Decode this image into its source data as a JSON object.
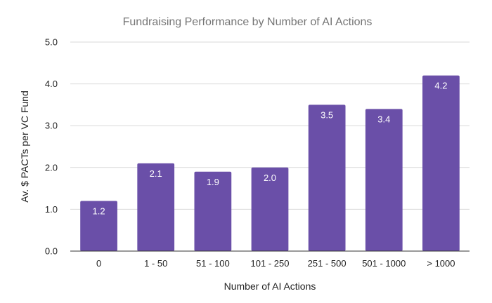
{
  "chart_data": {
    "type": "bar",
    "title": "Fundraising Performance by Number of AI Actions",
    "xlabel": "Number of AI Actions",
    "ylabel": "Av. $ PACTs per VC Fund",
    "categories": [
      "0",
      "1 - 50",
      "51 - 100",
      "101 - 250",
      "251 - 500",
      "501 - 1000",
      "> 1000"
    ],
    "values": [
      1.2,
      2.1,
      1.9,
      2.0,
      3.5,
      3.4,
      4.2
    ],
    "data_labels": [
      "1.2",
      "2.1",
      "1.9",
      "2.0",
      "3.5",
      "3.4",
      "4.2"
    ],
    "ylim": [
      0,
      5
    ],
    "yticks": [
      "0.0",
      "1.0",
      "2.0",
      "3.0",
      "4.0",
      "5.0"
    ],
    "grid": true,
    "legend": "none",
    "colors": {
      "bar": "#6a4fa8",
      "grid": "#d9d9d9",
      "axis": "#333333"
    }
  }
}
